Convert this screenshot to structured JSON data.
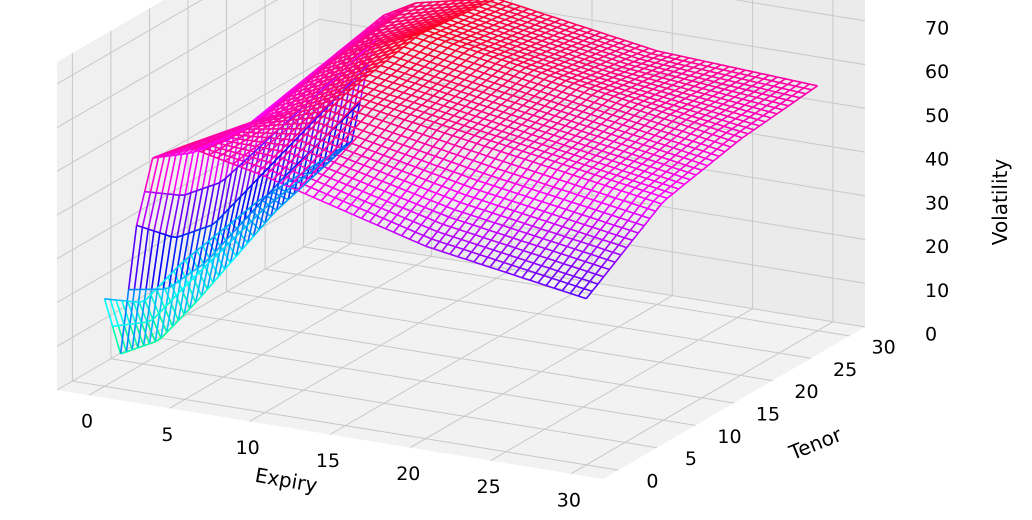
{
  "chart_data": {
    "type": "surface",
    "title": "",
    "xlabel": "Expiry",
    "ylabel": "Tenor",
    "zlabel": "Volatility",
    "xlim": [
      0,
      30
    ],
    "ylim": [
      0,
      30
    ],
    "zlim": [
      0,
      70
    ],
    "x_ticks": [
      "0",
      "5",
      "10",
      "15",
      "20",
      "25",
      "30"
    ],
    "y_ticks": [
      "0",
      "5",
      "10",
      "15",
      "20",
      "25",
      "30"
    ],
    "z_ticks": [
      "0",
      "10",
      "20",
      "30",
      "40",
      "50",
      "60",
      "70"
    ],
    "grid": true,
    "colormap": "hsv",
    "wireframe": true,
    "surface_sample": {
      "expiry": [
        0,
        1,
        2,
        3,
        5,
        10,
        20,
        30
      ],
      "tenor": [
        0,
        5,
        10,
        20,
        30
      ],
      "volatility": [
        [
          20,
          14,
          18,
          22,
          23
        ],
        [
          8,
          6,
          10,
          20,
          26
        ],
        [
          38,
          30,
          28,
          36,
          44
        ],
        [
          54,
          50,
          48,
          52,
          56
        ],
        [
          58,
          56,
          54,
          58,
          60
        ],
        [
          54,
          58,
          62,
          66,
          64
        ],
        [
          44,
          50,
          56,
          60,
          58
        ],
        [
          38,
          44,
          50,
          54,
          56
        ]
      ]
    }
  }
}
